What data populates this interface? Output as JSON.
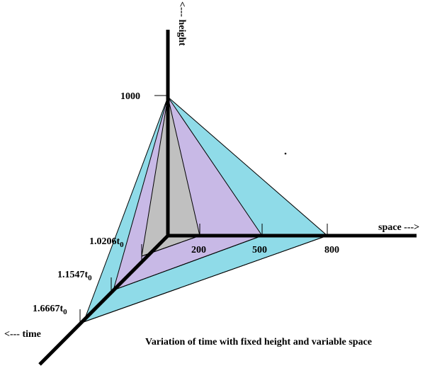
{
  "axes": {
    "height_label": "<--- height",
    "space_label": "space --->",
    "time_label": "<--- time"
  },
  "ticks": {
    "height": [
      "1000"
    ],
    "space": [
      "200",
      "500",
      "800"
    ],
    "time": [
      {
        "base": "1.0206t",
        "sub": "0"
      },
      {
        "base": "1.1547t",
        "sub": "0"
      },
      {
        "base": "1.6667t",
        "sub": "0"
      }
    ]
  },
  "caption": "Variation of time with fixed height and variable space",
  "colors": {
    "gray": "#c0c0c0",
    "lavender": "#c8b9e6",
    "cyan": "#8fdbe8",
    "axis": "#000000"
  }
}
